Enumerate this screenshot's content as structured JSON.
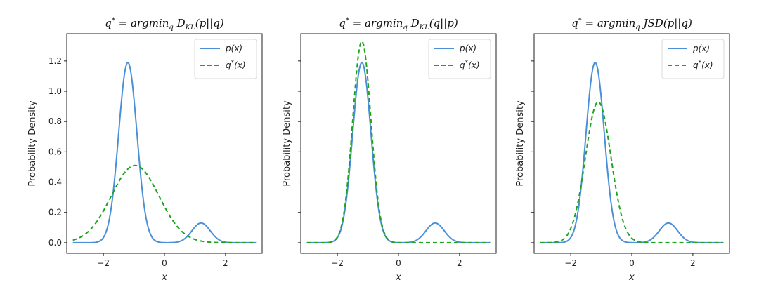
{
  "chart_data": [
    {
      "type": "line",
      "title": "q* = argmin_q D_KL(p||q)",
      "xlabel": "x",
      "ylabel": "Probability Density",
      "xlim": [
        -3.2,
        3.2
      ],
      "ylim": [
        -0.07,
        1.38
      ],
      "x_ticks": [
        -2,
        0,
        2
      ],
      "x_tick_labels": [
        "−2",
        "0",
        "2"
      ],
      "y_ticks": [
        0.0,
        0.2,
        0.4,
        0.6,
        0.8,
        1.0,
        1.2
      ],
      "y_tick_labels": [
        "0.0",
        "0.2",
        "0.4",
        "0.6",
        "0.8",
        "1.0",
        "1.2"
      ],
      "show_y_tick_labels": true,
      "legend_position": "top-right",
      "grid": false,
      "series": [
        {
          "name": "p(x)",
          "color": "#4a90d9",
          "style": "solid",
          "components": [
            {
              "mu": -1.2,
              "sigma": 0.3,
              "amp": 1.19
            },
            {
              "mu": 1.2,
              "sigma": 0.3,
              "amp": 0.13
            }
          ]
        },
        {
          "name": "q*(x)",
          "color": "#1ea51e",
          "style": "dashed",
          "components": [
            {
              "mu": -0.96,
              "sigma": 0.78,
              "amp": 0.51
            }
          ]
        }
      ]
    },
    {
      "type": "line",
      "title": "q* = argmin_q D_KL(q||p)",
      "xlabel": "x",
      "ylabel": "Probability Density",
      "xlim": [
        -3.2,
        3.2
      ],
      "ylim": [
        -0.07,
        1.38
      ],
      "x_ticks": [
        -2,
        0,
        2
      ],
      "x_tick_labels": [
        "−2",
        "0",
        "2"
      ],
      "y_ticks": [
        0.0,
        0.2,
        0.4,
        0.6,
        0.8,
        1.0,
        1.2
      ],
      "y_tick_labels": [],
      "show_y_tick_labels": false,
      "legend_position": "top-right",
      "grid": false,
      "series": [
        {
          "name": "p(x)",
          "color": "#4a90d9",
          "style": "solid",
          "components": [
            {
              "mu": -1.2,
              "sigma": 0.3,
              "amp": 1.19
            },
            {
              "mu": 1.2,
              "sigma": 0.3,
              "amp": 0.13
            }
          ]
        },
        {
          "name": "q*(x)",
          "color": "#1ea51e",
          "style": "dashed",
          "components": [
            {
              "mu": -1.2,
              "sigma": 0.3,
              "amp": 1.33
            }
          ]
        }
      ]
    },
    {
      "type": "line",
      "title": "q* = argmin_q JSD(p||q)",
      "xlabel": "x",
      "ylabel": "Probability Density",
      "xlim": [
        -3.2,
        3.2
      ],
      "ylim": [
        -0.07,
        1.38
      ],
      "x_ticks": [
        -2,
        0,
        2
      ],
      "x_tick_labels": [
        "−2",
        "0",
        "2"
      ],
      "y_ticks": [
        0.0,
        0.2,
        0.4,
        0.6,
        0.8,
        1.0,
        1.2
      ],
      "y_tick_labels": [],
      "show_y_tick_labels": false,
      "legend_position": "top-right",
      "grid": false,
      "series": [
        {
          "name": "p(x)",
          "color": "#4a90d9",
          "style": "solid",
          "components": [
            {
              "mu": -1.2,
              "sigma": 0.3,
              "amp": 1.19
            },
            {
              "mu": 1.2,
              "sigma": 0.3,
              "amp": 0.13
            }
          ]
        },
        {
          "name": "q*(x)",
          "color": "#1ea51e",
          "style": "dashed",
          "components": [
            {
              "mu": -1.1,
              "sigma": 0.42,
              "amp": 0.93
            }
          ]
        }
      ]
    }
  ]
}
